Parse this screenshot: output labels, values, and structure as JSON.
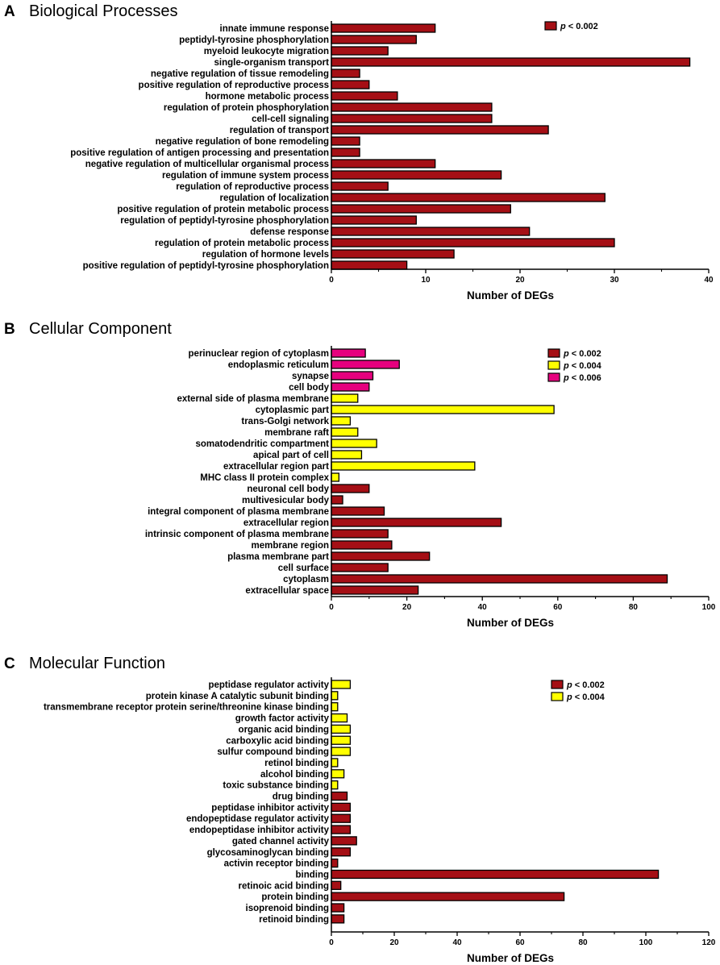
{
  "figure": {
    "colors": {
      "p002": "#a50f15",
      "p004": "#ffff00",
      "p006": "#e6007e",
      "stroke": "#000000"
    }
  },
  "chart_data": [
    {
      "panel_letter": "A",
      "type": "bar",
      "orientation": "horizontal",
      "title": "Biological Processes",
      "xlabel": "Number of DEGs",
      "ylabel": "",
      "xlim": [
        0,
        40
      ],
      "xticks": [
        0,
        10,
        20,
        30,
        40
      ],
      "grid": false,
      "legend_position": "top-right",
      "legend": [
        {
          "key": "p002",
          "p": "p",
          "text": " < 0.002"
        }
      ],
      "categories": [
        "innate immune response",
        "peptidyl-tyrosine phosphorylation",
        "myeloid leukocyte migration",
        "single-organism transport",
        "negative regulation of tissue remodeling",
        "positive regulation of reproductive process",
        "hormone metabolic process",
        "regulation of protein phosphorylation",
        "cell-cell signaling",
        "regulation of transport",
        "negative regulation of bone remodeling",
        "positive regulation of antigen processing and presentation",
        "negative regulation of multicellular organismal process",
        "regulation of immune system process",
        "regulation of reproductive process",
        "regulation of localization",
        "positive regulation of protein metabolic process",
        "regulation of peptidyl-tyrosine phosphorylation",
        "defense response",
        "regulation of protein metabolic process",
        "regulation of hormone levels",
        "positive regulation of peptidyl-tyrosine phosphorylation"
      ],
      "values": [
        11,
        9,
        6,
        38,
        3,
        4,
        7,
        17,
        17,
        23,
        3,
        3,
        11,
        18,
        6,
        29,
        19,
        9,
        21,
        30,
        13,
        8
      ],
      "groups": [
        "p002",
        "p002",
        "p002",
        "p002",
        "p002",
        "p002",
        "p002",
        "p002",
        "p002",
        "p002",
        "p002",
        "p002",
        "p002",
        "p002",
        "p002",
        "p002",
        "p002",
        "p002",
        "p002",
        "p002",
        "p002",
        "p002"
      ]
    },
    {
      "panel_letter": "B",
      "type": "bar",
      "orientation": "horizontal",
      "title": "Cellular Component",
      "xlabel": "Number of DEGs",
      "ylabel": "",
      "xlim": [
        0,
        100
      ],
      "xticks": [
        0,
        20,
        40,
        60,
        80,
        100
      ],
      "grid": false,
      "legend_position": "top-right",
      "legend": [
        {
          "key": "p002",
          "p": "p",
          "text": " < 0.002"
        },
        {
          "key": "p004",
          "p": "p",
          "text": " < 0.004"
        },
        {
          "key": "p006",
          "p": "p",
          "text": " < 0.006"
        }
      ],
      "categories": [
        "perinuclear region of cytoplasm",
        "endoplasmic reticulum",
        "synapse",
        "cell body",
        "external side of plasma membrane",
        "cytoplasmic part",
        "trans-Golgi network",
        "membrane raft",
        "somatodendritic compartment",
        "apical part of cell",
        "extracellular region part",
        "MHC class II protein complex",
        "neuronal cell body",
        "multivesicular body",
        "integral component of plasma membrane",
        "extracellular region",
        "intrinsic component of plasma membrane",
        "membrane region",
        "plasma membrane part",
        "cell surface",
        "cytoplasm",
        "extracellular space"
      ],
      "values": [
        9,
        18,
        11,
        10,
        7,
        59,
        5,
        7,
        12,
        8,
        38,
        2,
        10,
        3,
        14,
        45,
        15,
        16,
        26,
        15,
        89,
        23
      ],
      "groups": [
        "p006",
        "p006",
        "p006",
        "p006",
        "p004",
        "p004",
        "p004",
        "p004",
        "p004",
        "p004",
        "p004",
        "p004",
        "p002",
        "p002",
        "p002",
        "p002",
        "p002",
        "p002",
        "p002",
        "p002",
        "p002",
        "p002"
      ]
    },
    {
      "panel_letter": "C",
      "type": "bar",
      "orientation": "horizontal",
      "title": "Molecular Function",
      "xlabel": "Number of DEGs",
      "ylabel": "",
      "xlim": [
        0,
        120
      ],
      "xticks": [
        0,
        20,
        40,
        60,
        80,
        100,
        120
      ],
      "grid": false,
      "legend_position": "top-right",
      "legend": [
        {
          "key": "p002",
          "p": "p",
          "text": " < 0.002"
        },
        {
          "key": "p004",
          "p": "p",
          "text": " < 0.004"
        }
      ],
      "categories": [
        "peptidase regulator activity",
        "protein kinase A catalytic subunit binding",
        "transmembrane receptor protein serine/threonine kinase binding",
        "growth factor activity",
        "organic acid binding",
        "carboxylic acid binding",
        "sulfur compound binding",
        "retinol binding",
        "alcohol binding",
        "toxic substance binding",
        "drug binding",
        "peptidase inhibitor activity",
        "endopeptidase regulator activity",
        "endopeptidase inhibitor activity",
        "gated channel activity",
        "glycosaminoglycan binding",
        "activin receptor binding",
        "binding",
        "retinoic acid binding",
        "protein binding",
        "isoprenoid binding",
        "retinoid binding"
      ],
      "values": [
        6,
        2,
        2,
        5,
        6,
        6,
        6,
        2,
        4,
        2,
        5,
        6,
        6,
        6,
        8,
        6,
        2,
        104,
        3,
        74,
        4,
        4
      ],
      "groups": [
        "p004",
        "p004",
        "p004",
        "p004",
        "p004",
        "p004",
        "p004",
        "p004",
        "p004",
        "p004",
        "p002",
        "p002",
        "p002",
        "p002",
        "p002",
        "p002",
        "p002",
        "p002",
        "p002",
        "p002",
        "p002",
        "p002"
      ]
    }
  ]
}
